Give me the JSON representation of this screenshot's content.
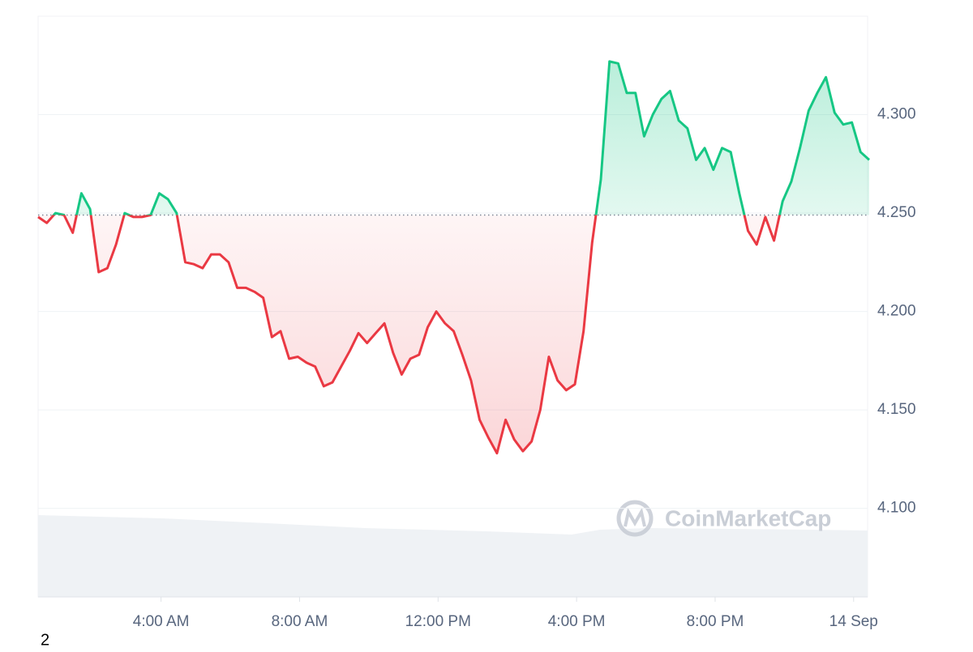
{
  "chart_data": {
    "type": "line",
    "watermark": "CoinMarketCap",
    "baseline": 4.249,
    "up_color": "#16c784",
    "down_color": "#ea3943",
    "grid": true,
    "xlim": [
      0.45,
      24.45
    ],
    "xticks": [
      {
        "value": 4,
        "label": "4:00 AM"
      },
      {
        "value": 8,
        "label": "8:00 AM"
      },
      {
        "value": 12,
        "label": "12:00 PM"
      },
      {
        "value": 16,
        "label": "4:00 PM"
      },
      {
        "value": 20,
        "label": "8:00 PM"
      },
      {
        "value": 24,
        "label": "14 Sep"
      }
    ],
    "ylim": [
      4.055,
      4.35
    ],
    "yticks": [
      {
        "value": 4.1,
        "label": "4.100"
      },
      {
        "value": 4.15,
        "label": "4.150"
      },
      {
        "value": 4.2,
        "label": "4.200"
      },
      {
        "value": 4.25,
        "label": "4.250"
      },
      {
        "value": 4.3,
        "label": "4.300"
      }
    ],
    "x": [
      0.45,
      0.7,
      0.95,
      1.2,
      1.45,
      1.7,
      1.95,
      2.2,
      2.45,
      2.7,
      2.95,
      3.2,
      3.45,
      3.7,
      3.95,
      4.2,
      4.45,
      4.7,
      4.95,
      5.2,
      5.45,
      5.7,
      5.95,
      6.2,
      6.45,
      6.7,
      6.95,
      7.2,
      7.45,
      7.7,
      7.95,
      8.2,
      8.45,
      8.7,
      8.95,
      9.2,
      9.45,
      9.7,
      9.95,
      10.2,
      10.45,
      10.7,
      10.95,
      11.2,
      11.45,
      11.7,
      11.95,
      12.2,
      12.45,
      12.7,
      12.95,
      13.2,
      13.45,
      13.7,
      13.95,
      14.2,
      14.45,
      14.7,
      14.95,
      15.2,
      15.45,
      15.7,
      15.95,
      16.2,
      16.45,
      16.7,
      16.95,
      17.2,
      17.45,
      17.7,
      17.95,
      18.2,
      18.45,
      18.7,
      18.95,
      19.2,
      19.45,
      19.7,
      19.95,
      20.2,
      20.45,
      20.7,
      20.95,
      21.2,
      21.45,
      21.7,
      21.95,
      22.2,
      22.45,
      22.7,
      22.95,
      23.2,
      23.45,
      23.7,
      23.95,
      24.2,
      24.45
    ],
    "values": [
      4.248,
      4.245,
      4.25,
      4.249,
      4.24,
      4.26,
      4.252,
      4.22,
      4.222,
      4.234,
      4.25,
      4.248,
      4.248,
      4.249,
      4.26,
      4.257,
      4.25,
      4.225,
      4.224,
      4.222,
      4.229,
      4.229,
      4.225,
      4.212,
      4.212,
      4.21,
      4.207,
      4.187,
      4.19,
      4.176,
      4.177,
      4.174,
      4.172,
      4.162,
      4.164,
      4.172,
      4.18,
      4.189,
      4.184,
      4.189,
      4.194,
      4.179,
      4.168,
      4.176,
      4.178,
      4.192,
      4.2,
      4.194,
      4.19,
      4.178,
      4.165,
      4.145,
      4.136,
      4.128,
      4.145,
      4.135,
      4.129,
      4.134,
      4.15,
      4.177,
      4.165,
      4.16,
      4.163,
      4.19,
      4.235,
      4.267,
      4.327,
      4.326,
      4.311,
      4.311,
      4.289,
      4.3,
      4.308,
      4.312,
      4.297,
      4.293,
      4.277,
      4.283,
      4.272,
      4.283,
      4.281,
      4.26,
      4.241,
      4.234,
      4.248,
      4.236,
      4.256,
      4.266,
      4.283,
      4.302,
      4.311,
      4.319,
      4.301,
      4.295,
      4.296,
      4.281,
      4.277
    ]
  },
  "footer": "2"
}
